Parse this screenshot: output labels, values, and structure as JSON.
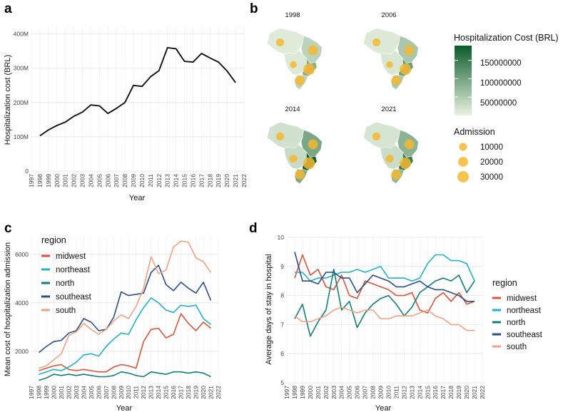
{
  "panels": {
    "a": "a",
    "b": "b",
    "c": "c",
    "d": "d"
  },
  "chart_data": [
    {
      "id": "a",
      "type": "line",
      "title": "",
      "xlabel": "Year",
      "ylabel": "Hospitalization cost (BRL)",
      "x_ticks": [
        "1997",
        "1998",
        "1999",
        "2000",
        "2001",
        "2002",
        "2003",
        "2004",
        "2005",
        "2006",
        "2007",
        "2008",
        "2009",
        "2010",
        "2011",
        "2012",
        "2013",
        "2014",
        "2015",
        "2016",
        "2017",
        "2018",
        "2019",
        "2020",
        "2021",
        "2022"
      ],
      "y_ticks": [
        {
          "v": 0,
          "label": "0"
        },
        {
          "v": 100,
          "label": "100M"
        },
        {
          "v": 200,
          "label": "200M"
        },
        {
          "v": 300,
          "label": "300M"
        },
        {
          "v": 400,
          "label": "400M"
        }
      ],
      "xlim": [
        1997,
        2022
      ],
      "ylim": [
        0,
        420
      ],
      "x": [
        1998,
        1999,
        2000,
        2001,
        2002,
        2003,
        2004,
        2005,
        2006,
        2007,
        2008,
        2009,
        2010,
        2011,
        2012,
        2013,
        2014,
        2015,
        2016,
        2017,
        2018,
        2019,
        2020,
        2021
      ],
      "values": [
        103,
        120,
        133,
        143,
        160,
        172,
        193,
        190,
        168,
        183,
        200,
        250,
        247,
        275,
        293,
        360,
        357,
        320,
        318,
        343,
        330,
        318,
        292,
        258
      ],
      "color": "#111111"
    },
    {
      "id": "b",
      "type": "map",
      "years": [
        "1998",
        "2006",
        "2014",
        "2021"
      ],
      "regions": [
        "north",
        "northeast",
        "midwest",
        "southeast",
        "south"
      ],
      "cost_by_year": {
        "1998": {
          "north": 10000000,
          "northeast": 40000000,
          "midwest": 12000000,
          "southeast": 85000000,
          "south": 40000000
        },
        "2006": {
          "north": 12000000,
          "northeast": 55000000,
          "midwest": 15000000,
          "southeast": 110000000,
          "south": 55000000
        },
        "2014": {
          "north": 22000000,
          "northeast": 95000000,
          "midwest": 30000000,
          "southeast": 185000000,
          "south": 95000000
        },
        "2021": {
          "north": 18000000,
          "northeast": 80000000,
          "midwest": 28000000,
          "southeast": 150000000,
          "south": 75000000
        }
      },
      "admission_by_year": {
        "1998": {
          "north": 10000,
          "northeast": 20000,
          "midwest": 6000,
          "southeast": 30000,
          "south": 20000
        },
        "2006": {
          "north": 10000,
          "northeast": 20000,
          "midwest": 6000,
          "southeast": 30000,
          "south": 18000
        },
        "2014": {
          "north": 10000,
          "northeast": 20000,
          "midwest": 10000,
          "southeast": 33000,
          "south": 20000
        },
        "2021": {
          "north": 10000,
          "northeast": 20000,
          "midwest": 10000,
          "southeast": 30000,
          "south": 20000
        }
      },
      "legend_cost_title": "Hospitalization Cost (BRL)",
      "legend_cost_labels": [
        "150000000",
        "100000000",
        "50000000"
      ],
      "legend_cost_range": [
        0,
        190000000
      ],
      "legend_admission_title": "Admission",
      "legend_admission_labels": [
        "10000",
        "20000",
        "30000"
      ],
      "colors": {
        "low": "#eaf3e3",
        "high": "#0b5a2a",
        "bubble": "#f4b731"
      }
    },
    {
      "id": "c",
      "type": "line",
      "xlabel": "Year",
      "ylabel": "Mean cost of hospitalization admission",
      "x_ticks": [
        "1997",
        "1998",
        "1999",
        "2000",
        "2001",
        "2002",
        "2003",
        "2004",
        "2005",
        "2006",
        "2007",
        "2008",
        "2009",
        "2010",
        "2011",
        "2012",
        "2013",
        "2014",
        "2015",
        "2016",
        "2017",
        "2018",
        "2019",
        "2020",
        "2021",
        "2022"
      ],
      "y_ticks": [
        {
          "v": 2000,
          "label": "2000"
        },
        {
          "v": 4000,
          "label": "4000"
        },
        {
          "v": 6000,
          "label": "6000"
        }
      ],
      "xlim": [
        1997,
        2022
      ],
      "ylim": [
        700,
        6700
      ],
      "legend_title": "region",
      "x": [
        1998,
        1999,
        2000,
        2001,
        2002,
        2003,
        2004,
        2005,
        2006,
        2007,
        2008,
        2009,
        2010,
        2011,
        2012,
        2013,
        2014,
        2015,
        2016,
        2017,
        2018,
        2019,
        2020,
        2021
      ],
      "series": [
        {
          "name": "midwest",
          "color": "#d9533b",
          "values": [
            1200,
            1300,
            1400,
            1450,
            1250,
            1200,
            1250,
            1200,
            1150,
            1150,
            1350,
            1450,
            1400,
            1300,
            2400,
            2900,
            2950,
            2550,
            2700,
            3550,
            3150,
            2850,
            3200,
            2950
          ]
        },
        {
          "name": "northeast",
          "color": "#21b1cb",
          "values": [
            1050,
            1150,
            1250,
            1200,
            1350,
            1550,
            1850,
            1900,
            1800,
            2200,
            2500,
            2750,
            2700,
            3300,
            3800,
            4200,
            4000,
            3700,
            3600,
            3900,
            3850,
            3900,
            3350,
            3100
          ]
        },
        {
          "name": "north",
          "color": "#137e77",
          "values": [
            800,
            900,
            1050,
            1000,
            1050,
            1000,
            1050,
            1000,
            950,
            950,
            1000,
            1150,
            1100,
            1000,
            950,
            1150,
            1100,
            1050,
            1150,
            1150,
            1100,
            1150,
            1100,
            950
          ]
        },
        {
          "name": "southeast",
          "color": "#2c4d86",
          "values": [
            1950,
            2200,
            2400,
            2450,
            2750,
            2850,
            3350,
            3200,
            2850,
            2900,
            3400,
            4450,
            4300,
            4350,
            4400,
            5250,
            5550,
            4750,
            4500,
            4850,
            4600,
            4400,
            4850,
            4100
          ]
        },
        {
          "name": "south",
          "color": "#f1a282",
          "values": [
            1300,
            1400,
            1650,
            1900,
            2650,
            2800,
            3150,
            2900,
            2700,
            2900,
            3250,
            3500,
            3350,
            3850,
            4600,
            5900,
            5200,
            5350,
            6300,
            6550,
            6500,
            5850,
            5700,
            5250
          ]
        }
      ]
    },
    {
      "id": "d",
      "type": "line",
      "xlabel": "Year",
      "ylabel": "Average days of stay in hospital",
      "x_ticks": [
        "1997",
        "1998",
        "1999",
        "2000",
        "2001",
        "2002",
        "2003",
        "2004",
        "2005",
        "2006",
        "2007",
        "2008",
        "2009",
        "2010",
        "2011",
        "2012",
        "2013",
        "2014",
        "2015",
        "2016",
        "2017",
        "2018",
        "2019",
        "2020",
        "2021",
        "2022"
      ],
      "y_ticks": [
        {
          "v": 5,
          "label": "5"
        },
        {
          "v": 6,
          "label": "6"
        },
        {
          "v": 7,
          "label": "7"
        },
        {
          "v": 8,
          "label": "8"
        },
        {
          "v": 9,
          "label": "9"
        },
        {
          "v": 10,
          "label": "10"
        }
      ],
      "xlim": [
        1997,
        2022
      ],
      "ylim": [
        5,
        10
      ],
      "legend_title": "region",
      "x": [
        1998,
        1999,
        2000,
        2001,
        2002,
        2003,
        2004,
        2005,
        2006,
        2007,
        2008,
        2009,
        2010,
        2011,
        2012,
        2013,
        2014,
        2015,
        2016,
        2017,
        2018,
        2019,
        2020,
        2021
      ],
      "series": [
        {
          "name": "midwest",
          "color": "#d9533b",
          "values": [
            8.6,
            9.4,
            8.7,
            8.9,
            8.3,
            8.2,
            8.7,
            8.0,
            7.9,
            8.5,
            8.4,
            8.3,
            8.2,
            8.0,
            8.0,
            8.1,
            7.5,
            7.4,
            7.9,
            8.1,
            7.8,
            8.1,
            7.7,
            7.8
          ]
        },
        {
          "name": "northeast",
          "color": "#21b1cb",
          "values": [
            8.8,
            8.8,
            8.5,
            8.6,
            8.6,
            8.7,
            8.8,
            8.8,
            8.9,
            8.8,
            8.9,
            9.0,
            8.6,
            8.6,
            8.6,
            8.5,
            8.6,
            9.1,
            9.4,
            9.4,
            9.2,
            9.2,
            9.1,
            8.5
          ]
        },
        {
          "name": "north",
          "color": "#137e77",
          "values": [
            7.2,
            7.7,
            6.6,
            7.1,
            7.5,
            8.9,
            7.5,
            7.8,
            6.9,
            7.4,
            7.7,
            7.9,
            8.0,
            7.7,
            7.3,
            7.6,
            8.1,
            8.3,
            8.5,
            8.6,
            8.5,
            8.7,
            8.1,
            8.5
          ]
        },
        {
          "name": "southeast",
          "color": "#2c4d86",
          "values": [
            9.5,
            8.5,
            8.5,
            8.4,
            8.8,
            8.8,
            8.6,
            8.6,
            8.1,
            8.4,
            8.7,
            8.6,
            8.5,
            8.3,
            8.3,
            8.4,
            8.5,
            8.3,
            8.2,
            8.2,
            8.1,
            8.0,
            7.8,
            7.8
          ]
        },
        {
          "name": "south",
          "color": "#f1a282",
          "values": [
            7.3,
            7.1,
            7.1,
            7.2,
            7.3,
            7.5,
            7.6,
            7.5,
            7.4,
            7.5,
            7.5,
            7.2,
            7.2,
            7.3,
            7.3,
            7.3,
            7.4,
            7.5,
            7.3,
            7.2,
            7.0,
            7.0,
            6.8,
            6.8
          ]
        }
      ]
    }
  ]
}
